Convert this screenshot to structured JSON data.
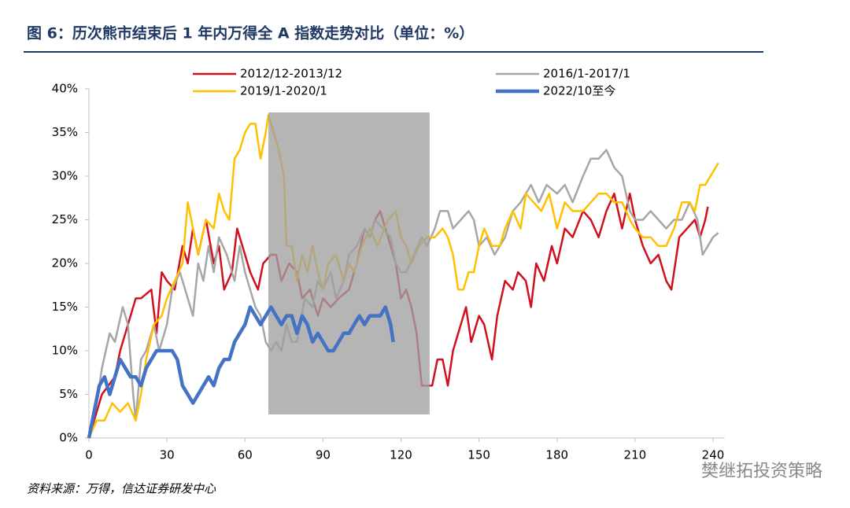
{
  "chart_data": {
    "type": "line",
    "title": "图 6：历次熊市结束后 1 年内万得全 A 指数走势对比（单位：%）",
    "source": "资料来源：万得，信达证券研发中心",
    "watermark": "樊继拓投资策略",
    "xlim": [
      0,
      242
    ],
    "xticks": [
      0,
      30,
      60,
      90,
      120,
      150,
      180,
      210,
      240
    ],
    "ylim": [
      0,
      40
    ],
    "yticks": [
      {
        "value": 0,
        "label": "0%"
      },
      {
        "value": 5,
        "label": "5%"
      },
      {
        "value": 10,
        "label": "10%"
      },
      {
        "value": 15,
        "label": "15%"
      },
      {
        "value": 20,
        "label": "20%"
      },
      {
        "value": 25,
        "label": "25%"
      },
      {
        "value": 30,
        "label": "30%"
      },
      {
        "value": 35,
        "label": "35%"
      },
      {
        "value": 40,
        "label": "40%"
      }
    ],
    "highlight": {
      "x": [
        69,
        131
      ],
      "y": [
        2.7,
        37.3
      ],
      "color": "#a0a0a0"
    },
    "series": [
      {
        "name": "2012/12-2013/12",
        "color": "#d0101e",
        "width": 2.5,
        "x": [
          0,
          5,
          10,
          12,
          15,
          18,
          20,
          24,
          26,
          28,
          30,
          33,
          36,
          38,
          40,
          42,
          45,
          48,
          50,
          52,
          55,
          57,
          60,
          62,
          65,
          67,
          70,
          72,
          74,
          77,
          80,
          82,
          85,
          88,
          90,
          93,
          96,
          100,
          103,
          106,
          108,
          110,
          112,
          114,
          116,
          118,
          120,
          122,
          124,
          126,
          128,
          130,
          132,
          134,
          136,
          138,
          140,
          143,
          145,
          147,
          150,
          152,
          155,
          157,
          160,
          163,
          165,
          168,
          170,
          172,
          175,
          178,
          180,
          183,
          186,
          190,
          193,
          196,
          199,
          202,
          205,
          208,
          210,
          213,
          216,
          219,
          222,
          224,
          227,
          230,
          233,
          235,
          237,
          238
        ],
        "values": [
          0,
          5,
          7,
          10,
          13,
          16,
          16,
          17,
          12,
          19,
          18,
          17,
          22,
          20,
          24,
          21,
          25,
          20,
          22,
          17,
          19,
          24,
          21,
          19,
          17,
          20,
          21,
          21,
          18,
          20,
          19,
          16,
          17,
          14,
          16,
          15,
          16,
          17,
          20,
          24,
          23,
          25,
          26,
          24,
          22,
          20,
          16,
          17,
          15,
          12,
          6,
          6,
          6,
          9,
          9,
          6,
          10,
          13,
          15,
          11,
          14,
          13,
          9,
          14,
          18,
          17,
          19,
          18,
          15,
          20,
          18,
          22,
          20,
          24,
          23,
          26,
          25,
          23,
          26,
          28,
          24,
          28,
          25,
          22,
          20,
          21,
          18,
          17,
          23,
          24,
          25,
          23,
          25,
          26.5
        ]
      },
      {
        "name": "2016/1-2017/1",
        "color": "#a6a6a6",
        "width": 2.5,
        "x": [
          0,
          3,
          5,
          8,
          10,
          13,
          15,
          17,
          18,
          20,
          22,
          25,
          27,
          30,
          32,
          35,
          38,
          40,
          42,
          44,
          46,
          48,
          50,
          53,
          56,
          58,
          60,
          62,
          64,
          66,
          68,
          70,
          72,
          74,
          76,
          78,
          80,
          83,
          86,
          88,
          90,
          93,
          95,
          98,
          100,
          103,
          106,
          108,
          110,
          113,
          116,
          118,
          120,
          122,
          125,
          128,
          130,
          133,
          135,
          138,
          140,
          143,
          146,
          148,
          150,
          153,
          156,
          160,
          163,
          166,
          170,
          173,
          176,
          180,
          183,
          186,
          190,
          193,
          196,
          199,
          202,
          205,
          208,
          210,
          213,
          216,
          219,
          222,
          225,
          228,
          231,
          234,
          236,
          238,
          240,
          242
        ],
        "values": [
          0,
          4,
          8,
          12,
          11,
          15,
          13,
          5,
          2,
          9,
          10,
          13,
          10,
          13,
          17,
          19,
          16,
          14,
          20,
          18,
          22,
          19,
          23,
          21,
          18,
          22,
          19,
          17,
          15,
          14,
          11,
          10,
          11,
          10,
          13,
          11,
          11,
          16,
          15,
          18,
          17,
          19,
          16,
          18,
          21,
          22,
          24,
          23,
          25,
          24,
          23,
          20,
          19,
          19,
          21,
          23,
          22,
          24,
          26,
          26,
          24,
          25,
          26,
          25,
          22,
          23,
          21,
          23,
          26,
          27,
          29,
          27,
          29,
          28,
          29,
          27,
          30,
          32,
          32,
          33,
          31,
          30,
          26,
          25,
          25,
          26,
          25,
          24,
          25,
          25,
          27,
          25,
          21,
          22,
          23,
          23.5
        ]
      },
      {
        "name": "2019/1-2020/1",
        "color": "#ffc000",
        "width": 2.5,
        "x": [
          0,
          3,
          6,
          9,
          12,
          15,
          18,
          20,
          22,
          25,
          28,
          30,
          33,
          36,
          38,
          40,
          42,
          45,
          48,
          50,
          52,
          54,
          56,
          58,
          60,
          62,
          64,
          66,
          68,
          69,
          71,
          73,
          75,
          76,
          78,
          80,
          82,
          84,
          86,
          88,
          90,
          92,
          95,
          98,
          100,
          102,
          105,
          108,
          111,
          115,
          118,
          120,
          122,
          124,
          127,
          130,
          133,
          136,
          138,
          140,
          142,
          144,
          146,
          148,
          150,
          152,
          155,
          158,
          160,
          163,
          166,
          168,
          171,
          174,
          177,
          180,
          183,
          186,
          190,
          193,
          196,
          199,
          202,
          205,
          208,
          210,
          213,
          216,
          219,
          222,
          225,
          228,
          231,
          233,
          235,
          237,
          239,
          242
        ],
        "values": [
          0,
          2,
          2,
          4,
          3,
          4,
          2,
          5,
          9,
          13,
          14,
          16,
          18,
          20,
          27,
          24,
          21,
          25,
          24,
          28,
          26,
          25,
          32,
          33,
          35,
          36,
          36,
          32,
          35,
          37,
          35,
          33,
          30,
          22,
          22,
          18,
          21,
          19,
          22,
          19,
          17,
          20,
          21,
          18,
          20,
          19,
          22,
          24,
          22,
          25,
          26,
          23,
          22,
          20,
          22,
          23,
          23,
          24,
          23,
          21,
          17,
          17,
          19,
          19,
          22,
          24,
          22,
          22,
          24,
          26,
          24,
          28,
          27,
          26,
          28,
          24,
          27,
          26,
          26,
          27,
          28,
          28,
          27,
          27,
          25,
          24,
          23,
          23,
          22,
          22,
          24,
          27,
          27,
          26,
          29,
          29,
          30,
          31.5
        ]
      },
      {
        "name": "2022/10至今",
        "color": "#4472c4",
        "width": 4.5,
        "x": [
          0,
          2,
          4,
          6,
          8,
          10,
          12,
          14,
          16,
          18,
          20,
          22,
          24,
          26,
          28,
          30,
          32,
          34,
          36,
          38,
          40,
          42,
          44,
          46,
          48,
          50,
          52,
          54,
          56,
          58,
          60,
          62,
          64,
          66,
          68,
          70,
          72,
          74,
          76,
          78,
          80,
          82,
          84,
          86,
          88,
          90,
          92,
          94,
          96,
          98,
          100,
          102,
          104,
          106,
          108,
          110,
          112,
          114,
          116,
          117
        ],
        "values": [
          0,
          3,
          6,
          7,
          5,
          7,
          9,
          8,
          7,
          7,
          6,
          8,
          9,
          10,
          10,
          10,
          10,
          9,
          6,
          5,
          4,
          5,
          6,
          7,
          6,
          8,
          9,
          9,
          11,
          12,
          13,
          15,
          14,
          13,
          14,
          15,
          14,
          13,
          14,
          14,
          12,
          14,
          13,
          11,
          12,
          11,
          10,
          10,
          11,
          12,
          12,
          13,
          14,
          13,
          14,
          14,
          14,
          15,
          13,
          11
        ]
      }
    ]
  }
}
